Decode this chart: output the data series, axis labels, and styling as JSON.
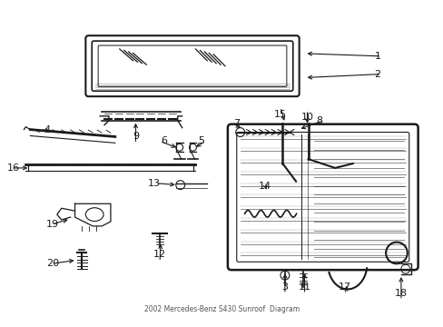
{
  "title": "2002 Mercedes-Benz S430 Sunroof  Diagram",
  "bg_color": "#ffffff",
  "line_color": "#1a1a1a",
  "label_color": "#000000",
  "fig_width": 4.89,
  "fig_height": 3.6,
  "dpi": 100,
  "label_fontsize": 8.0
}
